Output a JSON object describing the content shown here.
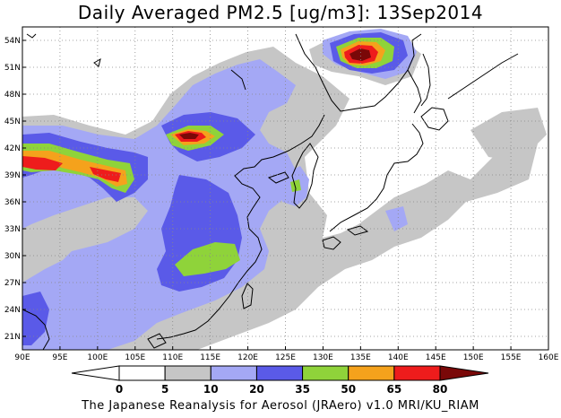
{
  "title": "Daily Averaged PM2.5 [ug/m3]: 13Sep2014",
  "footer": "The Japanese Reanalysis for Aerosol (JRAero) v1.0 MRI/KU_RIAM",
  "map": {
    "lon_range": [
      90,
      160
    ],
    "lat_range": [
      19.5,
      55.5
    ],
    "lon_ticks": [
      "90E",
      "95E",
      "100E",
      "105E",
      "110E",
      "115E",
      "120E",
      "125E",
      "130E",
      "135E",
      "140E",
      "145E",
      "150E",
      "155E",
      "160E"
    ],
    "lat_ticks": [
      "21N",
      "24N",
      "27N",
      "30N",
      "33N",
      "36N",
      "39N",
      "42N",
      "45N",
      "48N",
      "51N",
      "54N"
    ],
    "grid": true
  },
  "colorbar": {
    "levels": [
      "0",
      "5",
      "10",
      "20",
      "35",
      "50",
      "65",
      "80"
    ],
    "colors": [
      "#ffffff",
      "#c6c6c6",
      "#a4a8f5",
      "#5a5ae8",
      "#8fd33a",
      "#f5a21c",
      "#ee1c1c",
      "#7a0808"
    ]
  }
}
